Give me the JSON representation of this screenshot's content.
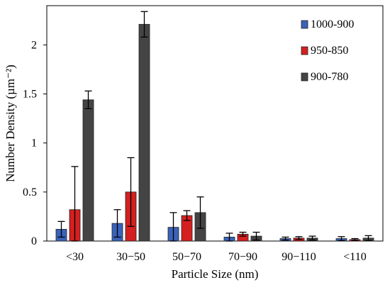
{
  "chart_data": {
    "type": "bar",
    "categories": [
      "<30",
      "30−50",
      "50−70",
      "70−90",
      "90−110",
      "<110"
    ],
    "series": [
      {
        "name": "1000-900",
        "color": "#3a62b8",
        "values": [
          0.12,
          0.18,
          0.14,
          0.04,
          0.025,
          0.025
        ],
        "errors": [
          0.08,
          0.14,
          0.15,
          0.04,
          0.015,
          0.02
        ]
      },
      {
        "name": "950-850",
        "color": "#d42020",
        "values": [
          0.32,
          0.5,
          0.26,
          0.07,
          0.03,
          0.015
        ],
        "errors": [
          0.44,
          0.35,
          0.05,
          0.02,
          0.015,
          0.01
        ]
      },
      {
        "name": "900-780",
        "color": "#444444",
        "values": [
          1.44,
          2.21,
          0.29,
          0.05,
          0.03,
          0.03
        ],
        "errors": [
          0.09,
          0.13,
          0.16,
          0.04,
          0.02,
          0.025
        ]
      }
    ],
    "xlabel": "Particle Size (nm)",
    "ylabel": "Number Density (µm⁻²)",
    "ylim": [
      0,
      2.4
    ],
    "yticks": [
      0,
      0.5,
      1,
      1.5,
      2
    ],
    "ytick_labels": [
      "0",
      "0.5",
      "1",
      "1.5",
      "2"
    ],
    "grid": false,
    "legend_position": "top-right"
  }
}
